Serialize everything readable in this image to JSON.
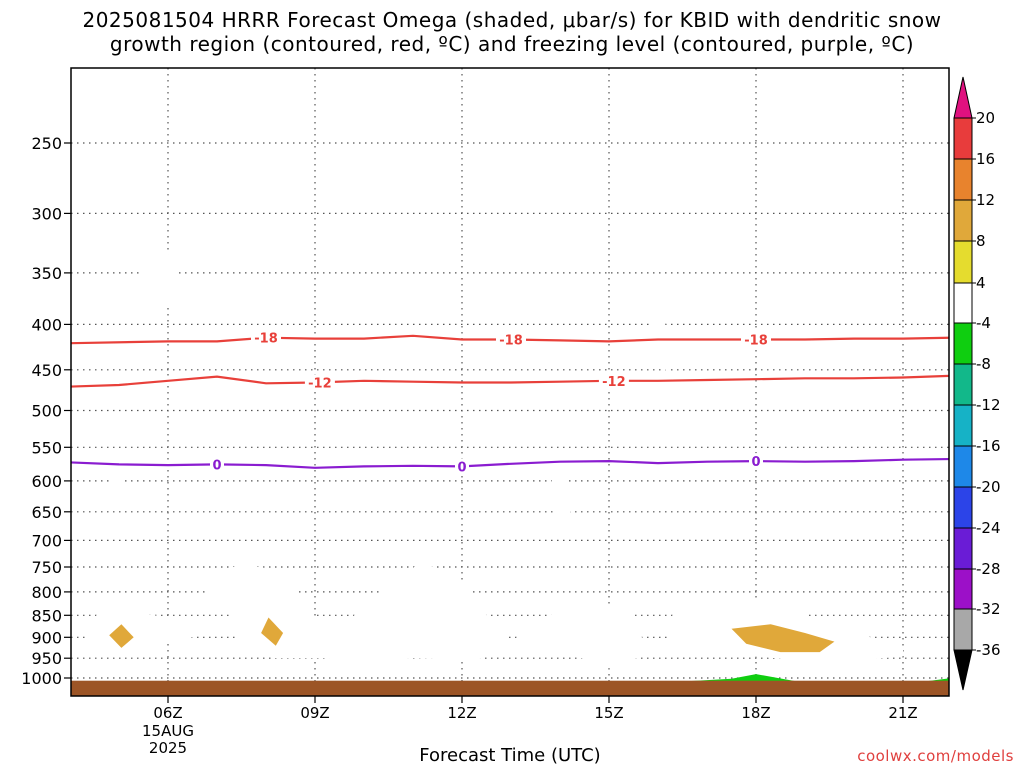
{
  "title": {
    "line1": "2025081504 HRRR Forecast Omega (shaded, μbar/s) for KBID with dendritic snow",
    "line2": "growth region (contoured, red, ºC) and freezing level (contoured, purple, ºC)"
  },
  "xlabel": "Forecast Time (UTC)",
  "credit": "coolwx.com/models",
  "chart_data": {
    "type": "heatmap",
    "x_axis": {
      "ticks": [
        "06Z",
        "09Z",
        "12Z",
        "15Z",
        "18Z",
        "21Z"
      ],
      "tick_hours": [
        6,
        9,
        12,
        15,
        18,
        21
      ],
      "first_tick_extra": [
        "15AUG",
        "2025"
      ],
      "range_hours": [
        4,
        22
      ]
    },
    "y_axis": {
      "ticks": [
        250,
        300,
        350,
        400,
        450,
        500,
        550,
        600,
        650,
        700,
        750,
        800,
        850,
        900,
        950,
        1000
      ],
      "unit": "mb",
      "scale": "log-pressure, inverted",
      "range": [
        200,
        1020
      ],
      "grid": "dotted"
    },
    "colorbar": {
      "labels": [
        "20",
        "16",
        "12",
        "8",
        "4",
        "-4",
        "-8",
        "-12",
        "-16",
        "-20",
        "-24",
        "-28",
        "-32",
        "-36"
      ],
      "bins": [
        {
          "range": [
            16,
            20
          ],
          "color": "#e83c3c"
        },
        {
          "range": [
            12,
            16
          ],
          "color": "#e8832d"
        },
        {
          "range": [
            8,
            12
          ],
          "color": "#e0a83a"
        },
        {
          "range": [
            4,
            8
          ],
          "color": "#e5dc2e"
        },
        {
          "range": [
            -4,
            4
          ],
          "color": "#ffffff"
        },
        {
          "range": [
            -8,
            -4
          ],
          "color": "#0fce10"
        },
        {
          "range": [
            -12,
            -8
          ],
          "color": "#12b88a"
        },
        {
          "range": [
            -16,
            -12
          ],
          "color": "#16b2c6"
        },
        {
          "range": [
            -20,
            -16
          ],
          "color": "#1e88e8"
        },
        {
          "range": [
            -24,
            -20
          ],
          "color": "#2c44e8"
        },
        {
          "range": [
            -28,
            -24
          ],
          "color": "#6a1cd6"
        },
        {
          "range": [
            -32,
            -28
          ],
          "color": "#9c10c8"
        },
        {
          "range": [
            -36,
            -32
          ],
          "color": "#a8a8a8"
        }
      ],
      "over_color": "#e0117f",
      "under_color": "#000000"
    },
    "omega_regions": [
      {
        "bin": 4,
        "points": [
          [
            5.65,
            305
          ],
          [
            6.1,
            340
          ],
          [
            6.4,
            378
          ],
          [
            5.5,
            382
          ],
          [
            5.4,
            360
          ]
        ]
      },
      {
        "bin": 4,
        "points": [
          [
            4.85,
            560
          ],
          [
            5.05,
            600
          ],
          [
            5.0,
            628
          ],
          [
            4.8,
            620
          ],
          [
            4.78,
            580
          ]
        ]
      },
      {
        "bin": 4,
        "points": [
          [
            16.0,
            373
          ],
          [
            16.2,
            410
          ],
          [
            16.2,
            455
          ],
          [
            15.85,
            420
          ],
          [
            15.9,
            390
          ]
        ]
      },
      {
        "bin": 4,
        "points": [
          [
            13.95,
            578
          ],
          [
            14.3,
            630
          ],
          [
            14.1,
            675
          ],
          [
            13.7,
            625
          ]
        ]
      },
      {
        "bin": 4,
        "points": [
          [
            4.3,
            890
          ],
          [
            4.6,
            840
          ],
          [
            5.0,
            840
          ],
          [
            5.7,
            850
          ],
          [
            6.5,
            860
          ],
          [
            6.5,
            900
          ],
          [
            5.8,
            915
          ],
          [
            5.4,
            940
          ],
          [
            4.8,
            940
          ],
          [
            4.4,
            930
          ]
        ]
      },
      {
        "bin": 4,
        "points": [
          [
            6.8,
            805
          ],
          [
            7.0,
            760
          ],
          [
            7.5,
            745
          ],
          [
            8.2,
            755
          ],
          [
            8.8,
            820
          ],
          [
            9.1,
            870
          ],
          [
            9.6,
            870
          ],
          [
            10.6,
            775
          ],
          [
            11.2,
            740
          ],
          [
            12.0,
            780
          ],
          [
            12.6,
            865
          ],
          [
            13.0,
            910
          ],
          [
            13.6,
            860
          ],
          [
            14.2,
            830
          ],
          [
            14.9,
            820
          ],
          [
            15.5,
            850
          ],
          [
            15.8,
            940
          ],
          [
            15.0,
            975
          ],
          [
            14.2,
            940
          ],
          [
            13.2,
            910
          ],
          [
            12.3,
            955
          ],
          [
            11.0,
            950
          ],
          [
            10.0,
            965
          ],
          [
            9.2,
            950
          ],
          [
            8.2,
            950
          ],
          [
            7.5,
            935
          ],
          [
            7.4,
            890
          ],
          [
            7.2,
            820
          ]
        ]
      },
      {
        "bin": 4,
        "points": [
          [
            16.2,
            860
          ],
          [
            16.6,
            820
          ],
          [
            17.5,
            810
          ],
          [
            18.4,
            815
          ],
          [
            19.4,
            870
          ],
          [
            20.5,
            905
          ],
          [
            21.0,
            925
          ],
          [
            21.0,
            945
          ],
          [
            20.2,
            955
          ],
          [
            19.3,
            960
          ],
          [
            18.4,
            950
          ],
          [
            17.3,
            940
          ],
          [
            16.2,
            925
          ]
        ]
      },
      {
        "bin": 8,
        "points": [
          [
            4.8,
            895
          ],
          [
            5.05,
            870
          ],
          [
            5.3,
            900
          ],
          [
            5.05,
            925
          ]
        ]
      },
      {
        "bin": 8,
        "points": [
          [
            7.9,
            890
          ],
          [
            8.05,
            855
          ],
          [
            8.35,
            890
          ],
          [
            8.2,
            920
          ]
        ]
      },
      {
        "bin": 8,
        "points": [
          [
            17.5,
            880
          ],
          [
            18.3,
            870
          ],
          [
            19.0,
            890
          ],
          [
            19.6,
            910
          ],
          [
            19.3,
            935
          ],
          [
            18.5,
            935
          ],
          [
            17.8,
            915
          ]
        ]
      },
      {
        "bin": -4,
        "points": [
          [
            16.1,
            1012
          ],
          [
            17.5,
            1002
          ],
          [
            18.0,
            990
          ],
          [
            18.8,
            1008
          ],
          [
            16.1,
            1015
          ]
        ]
      },
      {
        "bin": -4,
        "points": [
          [
            20.0,
            1012
          ],
          [
            21.5,
            1008
          ],
          [
            22.0,
            1000
          ],
          [
            22.0,
            1015
          ]
        ]
      }
    ],
    "contours": [
      {
        "label": "-18",
        "color": "#e8403a",
        "label_hours": [
          8.0,
          13.0,
          18.0
        ],
        "x": [
          4,
          6,
          7,
          8,
          9,
          10,
          11,
          12,
          13,
          14,
          15,
          16,
          17,
          18,
          19,
          20,
          21,
          22
        ],
        "y": [
          420,
          418,
          418,
          414,
          415,
          415,
          412,
          416,
          416,
          417,
          418,
          416,
          416,
          416,
          416,
          415,
          415,
          414
        ]
      },
      {
        "label": "-12",
        "color": "#e8403a",
        "label_hours": [
          9.1,
          15.1
        ],
        "x": [
          4,
          5,
          6,
          7,
          8,
          9,
          10,
          11,
          12,
          13,
          14,
          15,
          16,
          17,
          18,
          19,
          20,
          21,
          22
        ],
        "y": [
          470,
          468,
          463,
          458,
          466,
          465,
          463,
          464,
          465,
          465,
          464,
          463,
          463,
          462,
          461,
          460,
          460,
          459,
          457
        ]
      },
      {
        "label": "0",
        "color": "#8a1cd0",
        "label_hours": [
          7.0,
          12.0,
          18.0
        ],
        "x": [
          4,
          5,
          6,
          7,
          8,
          9,
          10,
          11,
          12,
          13,
          14,
          15,
          16,
          17,
          18,
          19,
          20,
          21,
          22
        ],
        "y": [
          572,
          575,
          576,
          575,
          576,
          580,
          578,
          577,
          578,
          574,
          571,
          570,
          573,
          571,
          570,
          571,
          570,
          568,
          567
        ]
      }
    ],
    "terrain": {
      "color": "#9c5526",
      "pressure_top": 1007
    }
  }
}
